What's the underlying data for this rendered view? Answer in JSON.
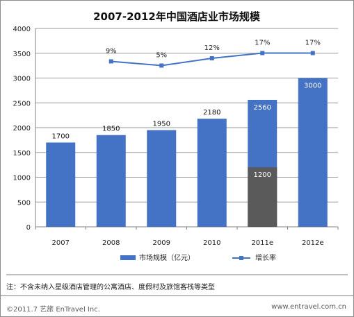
{
  "chart_data": {
    "type": "bar",
    "title": "2007-2012年中国酒店业市场规模",
    "categories": [
      "2007",
      "2008",
      "2009",
      "2010",
      "2011e",
      "2012e"
    ],
    "series": [
      {
        "name": "市场规模（亿元）",
        "type": "bar",
        "values": [
          1700,
          1850,
          1950,
          2180,
          2560,
          3000
        ],
        "labels": [
          "1700",
          "1850",
          "1950",
          "2180",
          "2560",
          "3000"
        ],
        "color": "#4472c4"
      },
      {
        "name": "增长率",
        "type": "line",
        "values": [
          null,
          9,
          5,
          12,
          17,
          17
        ],
        "labels": [
          "",
          "9%",
          "5%",
          "12%",
          "17%",
          "17%"
        ],
        "color": "#4472c4"
      }
    ],
    "sub_segment": {
      "category": "2011e",
      "value": 1200,
      "label": "1200",
      "color": "#5a5a5a"
    },
    "y_ticks": [
      "0",
      "500",
      "1000",
      "1500",
      "2000",
      "2500",
      "3000",
      "3500",
      "4000"
    ],
    "ylim": [
      0,
      4000
    ],
    "grid": true,
    "legend_position": "bottom"
  },
  "note": "注：不含未纳入星级酒店管理的公寓酒店、度假村及旅馆客栈等类型",
  "footer": {
    "copyright": "©2011.7 艺旅 EnTravel Inc.",
    "website": "www.entravel.com.cn"
  }
}
